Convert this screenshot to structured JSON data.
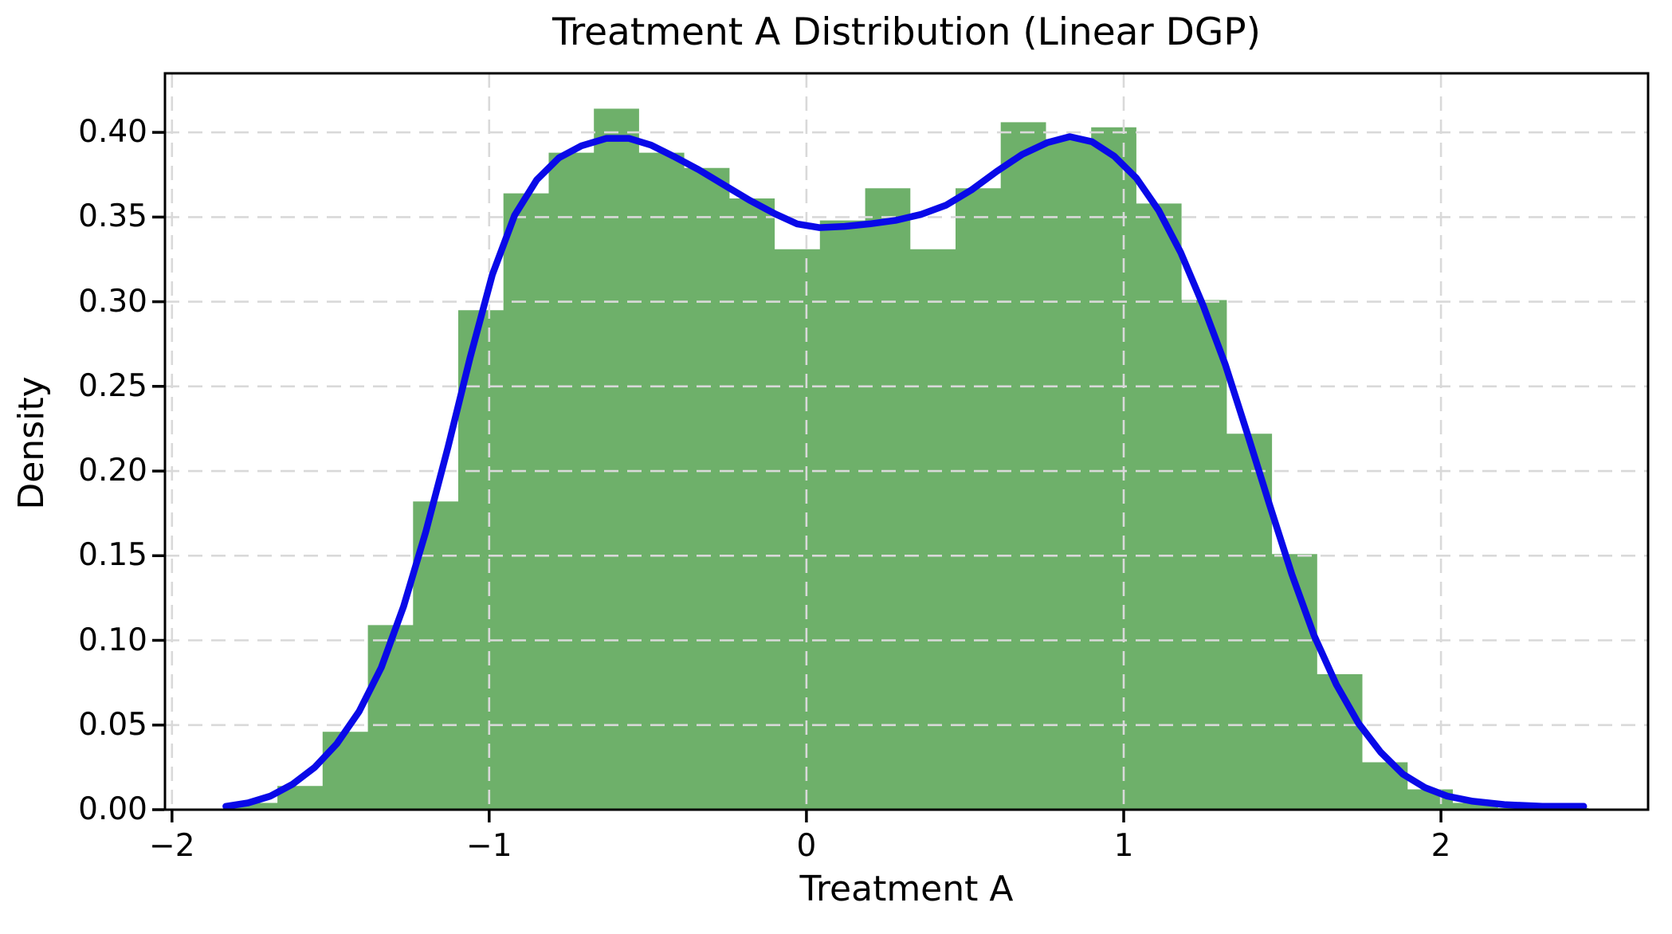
{
  "chart_data": {
    "type": "histogram+kde",
    "title": "Treatment A Distribution (Linear DGP)",
    "xlabel": "Treatment A",
    "ylabel": "Density",
    "xlim": [
      -2.022,
      2.653
    ],
    "ylim": [
      0,
      0.4349
    ],
    "grid": {
      "on": true,
      "style": "dashed",
      "color": "#d9d9d9",
      "above_bars": true
    },
    "x_ticks": {
      "values": [
        -2,
        -1,
        0,
        1,
        2
      ],
      "labels": [
        "−2",
        "−1",
        "0",
        "1",
        "2"
      ]
    },
    "y_ticks": {
      "values": [
        0.0,
        0.05,
        0.1,
        0.15,
        0.2,
        0.25,
        0.3,
        0.35,
        0.4
      ],
      "labels": [
        "0.00",
        "0.05",
        "0.10",
        "0.15",
        "0.20",
        "0.25",
        "0.30",
        "0.35",
        "0.40"
      ]
    },
    "histogram": {
      "color": "#6EB06A",
      "bin_start": -1.81,
      "bin_width": 0.1425,
      "heights": [
        0.004,
        0.014,
        0.046,
        0.109,
        0.182,
        0.295,
        0.364,
        0.388,
        0.414,
        0.388,
        0.379,
        0.361,
        0.331,
        0.348,
        0.367,
        0.331,
        0.367,
        0.406,
        0.396,
        0.403,
        0.358,
        0.301,
        0.222,
        0.151,
        0.08,
        0.028,
        0.012,
        0.004,
        0.001,
        0.001
      ]
    },
    "kde": {
      "color": "#0909E8",
      "line_width": 8.5,
      "points": [
        [
          -1.83,
          0.002
        ],
        [
          -1.76,
          0.004
        ],
        [
          -1.69,
          0.008
        ],
        [
          -1.62,
          0.015
        ],
        [
          -1.55,
          0.025
        ],
        [
          -1.48,
          0.039
        ],
        [
          -1.41,
          0.058
        ],
        [
          -1.34,
          0.084
        ],
        [
          -1.27,
          0.12
        ],
        [
          -1.2,
          0.164
        ],
        [
          -1.13,
          0.214
        ],
        [
          -1.06,
          0.267
        ],
        [
          -0.99,
          0.316
        ],
        [
          -0.92,
          0.351
        ],
        [
          -0.85,
          0.372
        ],
        [
          -0.78,
          0.385
        ],
        [
          -0.71,
          0.392
        ],
        [
          -0.63,
          0.3965
        ],
        [
          -0.56,
          0.3965
        ],
        [
          -0.49,
          0.3925
        ],
        [
          -0.42,
          0.386
        ],
        [
          -0.34,
          0.378
        ],
        [
          -0.26,
          0.369
        ],
        [
          -0.18,
          0.36
        ],
        [
          -0.1,
          0.352
        ],
        [
          -0.03,
          0.346
        ],
        [
          0.04,
          0.3438
        ],
        [
          0.12,
          0.3445
        ],
        [
          0.2,
          0.346
        ],
        [
          0.28,
          0.348
        ],
        [
          0.36,
          0.3515
        ],
        [
          0.44,
          0.357
        ],
        [
          0.52,
          0.366
        ],
        [
          0.6,
          0.377
        ],
        [
          0.68,
          0.387
        ],
        [
          0.76,
          0.394
        ],
        [
          0.83,
          0.3975
        ],
        [
          0.9,
          0.3945
        ],
        [
          0.97,
          0.386
        ],
        [
          1.04,
          0.373
        ],
        [
          1.11,
          0.354
        ],
        [
          1.18,
          0.329
        ],
        [
          1.25,
          0.298
        ],
        [
          1.32,
          0.263
        ],
        [
          1.39,
          0.222
        ],
        [
          1.46,
          0.18
        ],
        [
          1.53,
          0.139
        ],
        [
          1.6,
          0.103
        ],
        [
          1.67,
          0.074
        ],
        [
          1.74,
          0.051
        ],
        [
          1.81,
          0.034
        ],
        [
          1.88,
          0.021
        ],
        [
          1.95,
          0.013
        ],
        [
          2.02,
          0.008
        ],
        [
          2.1,
          0.005
        ],
        [
          2.2,
          0.003
        ],
        [
          2.32,
          0.002
        ],
        [
          2.45,
          0.002
        ]
      ]
    }
  }
}
